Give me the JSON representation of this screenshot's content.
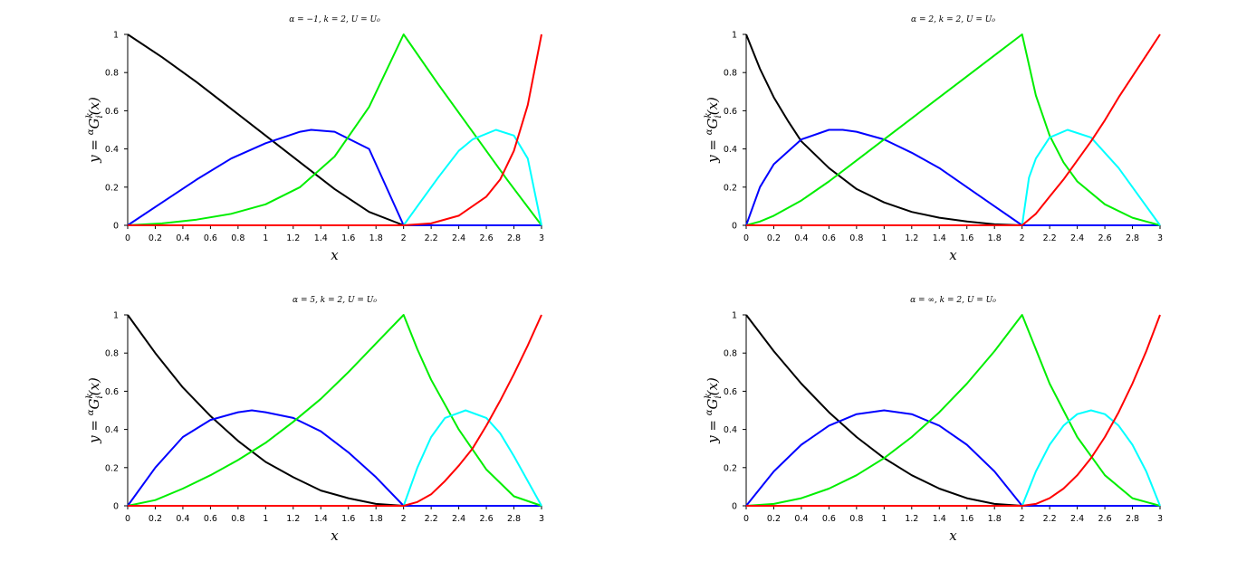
{
  "figure": {
    "ylabel_parts": [
      "y = ",
      "α",
      "G",
      "k",
      "i",
      "(x)"
    ]
  },
  "chart_data": [
    {
      "type": "line",
      "title": "α = −1, k = 2, U = U₀",
      "xlabel": "x",
      "ylabel": "y = αGᵢᵏ(x)",
      "xlim": [
        0,
        3
      ],
      "ylim": [
        0,
        1
      ],
      "xticks": [
        "0",
        "0.2",
        "0.4",
        "0.6",
        "0.8",
        "1",
        "1.2",
        "1.4",
        "1.6",
        "1.8",
        "2",
        "2.2",
        "2.4",
        "2.6",
        "2.8",
        "3"
      ],
      "yticks": [
        "0",
        "0.2",
        "0.4",
        "0.6",
        "0.8",
        "1"
      ],
      "grid": false,
      "series": [
        {
          "color": "#000000",
          "x": [
            0,
            0.25,
            0.5,
            0.75,
            1,
            1.25,
            1.5,
            1.75,
            2,
            2.5,
            3
          ],
          "y": [
            1,
            0.88,
            0.75,
            0.61,
            0.47,
            0.33,
            0.19,
            0.07,
            0,
            0,
            0
          ]
        },
        {
          "color": "#0000ff",
          "x": [
            0,
            0.25,
            0.5,
            0.75,
            1,
            1.25,
            1.33,
            1.5,
            1.75,
            2,
            2.5,
            3
          ],
          "y": [
            0,
            0.12,
            0.24,
            0.35,
            0.43,
            0.49,
            0.5,
            0.49,
            0.4,
            0,
            0,
            0
          ]
        },
        {
          "color": "#00ee00",
          "x": [
            0,
            0.25,
            0.5,
            0.75,
            1,
            1.25,
            1.5,
            1.75,
            2,
            2.25,
            2.5,
            2.75,
            3
          ],
          "y": [
            0,
            0.01,
            0.03,
            0.06,
            0.11,
            0.2,
            0.36,
            0.62,
            1,
            0.74,
            0.49,
            0.24,
            0
          ]
        },
        {
          "color": "#00ffff",
          "x": [
            0,
            1,
            2,
            2.1,
            2.25,
            2.4,
            2.5,
            2.67,
            2.8,
            2.9,
            3
          ],
          "y": [
            0,
            0,
            0,
            0.1,
            0.25,
            0.39,
            0.45,
            0.5,
            0.47,
            0.35,
            0
          ]
        },
        {
          "color": "#ff0000",
          "x": [
            0,
            1,
            2,
            2.2,
            2.4,
            2.6,
            2.7,
            2.8,
            2.9,
            3
          ],
          "y": [
            0,
            0,
            0,
            0.01,
            0.05,
            0.15,
            0.24,
            0.39,
            0.63,
            1
          ]
        }
      ]
    },
    {
      "type": "line",
      "title": "α = 2, k = 2, U = U₀",
      "xlabel": "x",
      "ylabel": "y = αGᵢᵏ(x)",
      "xlim": [
        0,
        3
      ],
      "ylim": [
        0,
        1
      ],
      "xticks": [
        "0",
        "0.2",
        "0.4",
        "0.6",
        "0.8",
        "1",
        "1.2",
        "1.4",
        "1.6",
        "1.8",
        "2",
        "2.2",
        "2.4",
        "2.6",
        "2.8",
        "3"
      ],
      "yticks": [
        "0",
        "0.2",
        "0.4",
        "0.6",
        "0.8",
        "1"
      ],
      "grid": false,
      "series": [
        {
          "color": "#000000",
          "x": [
            0,
            0.1,
            0.2,
            0.3,
            0.4,
            0.6,
            0.8,
            1,
            1.2,
            1.4,
            1.6,
            1.8,
            2,
            2.5,
            3
          ],
          "y": [
            1,
            0.82,
            0.67,
            0.55,
            0.44,
            0.3,
            0.19,
            0.12,
            0.07,
            0.04,
            0.02,
            0.005,
            0,
            0,
            0
          ]
        },
        {
          "color": "#0000ff",
          "x": [
            0,
            0.1,
            0.2,
            0.4,
            0.6,
            0.7,
            0.8,
            1,
            1.2,
            1.4,
            1.6,
            1.8,
            2,
            2.5,
            3
          ],
          "y": [
            0,
            0.2,
            0.32,
            0.45,
            0.5,
            0.5,
            0.49,
            0.45,
            0.38,
            0.3,
            0.2,
            0.1,
            0,
            0,
            0
          ]
        },
        {
          "color": "#00ee00",
          "x": [
            0,
            0.1,
            0.2,
            0.4,
            0.6,
            0.8,
            1,
            1.2,
            1.4,
            1.6,
            1.8,
            2,
            2.1,
            2.2,
            2.3,
            2.4,
            2.6,
            2.8,
            3
          ],
          "y": [
            0,
            0.02,
            0.05,
            0.13,
            0.23,
            0.34,
            0.45,
            0.56,
            0.67,
            0.78,
            0.89,
            1,
            0.68,
            0.47,
            0.33,
            0.23,
            0.11,
            0.04,
            0
          ]
        },
        {
          "color": "#00ffff",
          "x": [
            0,
            1,
            2,
            2.05,
            2.1,
            2.2,
            2.33,
            2.5,
            2.7,
            2.9,
            3
          ],
          "y": [
            0,
            0,
            0,
            0.25,
            0.35,
            0.46,
            0.5,
            0.46,
            0.3,
            0.1,
            0
          ]
        },
        {
          "color": "#ff0000",
          "x": [
            0,
            1,
            2,
            2.1,
            2.2,
            2.3,
            2.4,
            2.5,
            2.6,
            2.7,
            2.8,
            2.9,
            3
          ],
          "y": [
            0,
            0,
            0,
            0.06,
            0.15,
            0.24,
            0.34,
            0.44,
            0.55,
            0.67,
            0.78,
            0.89,
            1
          ]
        }
      ]
    },
    {
      "type": "line",
      "title": "α = 5, k = 2, U = U₀",
      "xlabel": "x",
      "ylabel": "y = αGᵢᵏ(x)",
      "xlim": [
        0,
        3
      ],
      "ylim": [
        0,
        1
      ],
      "xticks": [
        "0",
        "0.2",
        "0.4",
        "0.6",
        "0.8",
        "1",
        "1.2",
        "1.4",
        "1.6",
        "1.8",
        "2",
        "2.2",
        "2.4",
        "2.6",
        "2.8",
        "3"
      ],
      "yticks": [
        "0",
        "0.2",
        "0.4",
        "0.6",
        "0.8",
        "1"
      ],
      "grid": false,
      "series": [
        {
          "color": "#000000",
          "x": [
            0,
            0.2,
            0.4,
            0.6,
            0.8,
            1,
            1.2,
            1.4,
            1.6,
            1.8,
            2,
            2.5,
            3
          ],
          "y": [
            1,
            0.8,
            0.62,
            0.47,
            0.34,
            0.23,
            0.15,
            0.08,
            0.04,
            0.01,
            0,
            0,
            0
          ]
        },
        {
          "color": "#0000ff",
          "x": [
            0,
            0.2,
            0.4,
            0.6,
            0.8,
            0.9,
            1,
            1.2,
            1.4,
            1.6,
            1.8,
            2,
            2.5,
            3
          ],
          "y": [
            0,
            0.2,
            0.36,
            0.45,
            0.49,
            0.5,
            0.49,
            0.46,
            0.39,
            0.28,
            0.15,
            0,
            0,
            0
          ]
        },
        {
          "color": "#00ee00",
          "x": [
            0,
            0.2,
            0.4,
            0.6,
            0.8,
            1,
            1.2,
            1.4,
            1.6,
            1.8,
            2,
            2.1,
            2.2,
            2.4,
            2.6,
            2.8,
            3
          ],
          "y": [
            0,
            0.03,
            0.09,
            0.16,
            0.24,
            0.33,
            0.44,
            0.56,
            0.7,
            0.85,
            1,
            0.82,
            0.66,
            0.4,
            0.19,
            0.05,
            0
          ]
        },
        {
          "color": "#00ffff",
          "x": [
            0,
            1,
            2,
            2.1,
            2.2,
            2.3,
            2.45,
            2.6,
            2.7,
            2.8,
            2.9,
            3
          ],
          "y": [
            0,
            0,
            0,
            0.2,
            0.36,
            0.46,
            0.5,
            0.46,
            0.38,
            0.26,
            0.13,
            0
          ]
        },
        {
          "color": "#ff0000",
          "x": [
            0,
            1,
            2,
            2.1,
            2.2,
            2.3,
            2.4,
            2.5,
            2.6,
            2.7,
            2.8,
            2.9,
            3
          ],
          "y": [
            0,
            0,
            0,
            0.02,
            0.06,
            0.13,
            0.21,
            0.3,
            0.42,
            0.55,
            0.69,
            0.84,
            1
          ]
        }
      ]
    },
    {
      "type": "line",
      "title": "α = ∞, k = 2, U = U₀",
      "xlabel": "x",
      "ylabel": "y = αGᵢᵏ(x)",
      "xlim": [
        0,
        3
      ],
      "ylim": [
        0,
        1
      ],
      "xticks": [
        "0",
        "0.2",
        "0.4",
        "0.6",
        "0.8",
        "1",
        "1.2",
        "1.4",
        "1.6",
        "1.8",
        "2",
        "2.2",
        "2.4",
        "2.6",
        "2.8",
        "3"
      ],
      "yticks": [
        "0",
        "0.2",
        "0.4",
        "0.6",
        "0.8",
        "1"
      ],
      "grid": false,
      "series": [
        {
          "color": "#000000",
          "x": [
            0,
            0.2,
            0.4,
            0.6,
            0.8,
            1,
            1.2,
            1.4,
            1.6,
            1.8,
            2,
            2.5,
            3
          ],
          "y": [
            1,
            0.81,
            0.64,
            0.49,
            0.36,
            0.25,
            0.16,
            0.09,
            0.04,
            0.01,
            0,
            0,
            0
          ]
        },
        {
          "color": "#0000ff",
          "x": [
            0,
            0.2,
            0.4,
            0.6,
            0.8,
            1,
            1.2,
            1.4,
            1.6,
            1.8,
            2,
            2.5,
            3
          ],
          "y": [
            0,
            0.18,
            0.32,
            0.42,
            0.48,
            0.5,
            0.48,
            0.42,
            0.32,
            0.18,
            0,
            0,
            0
          ]
        },
        {
          "color": "#00ee00",
          "x": [
            0,
            0.2,
            0.4,
            0.6,
            0.8,
            1,
            1.2,
            1.4,
            1.6,
            1.8,
            2,
            2.2,
            2.4,
            2.6,
            2.8,
            3
          ],
          "y": [
            0,
            0.01,
            0.04,
            0.09,
            0.16,
            0.25,
            0.36,
            0.49,
            0.64,
            0.81,
            1,
            0.64,
            0.36,
            0.16,
            0.04,
            0
          ]
        },
        {
          "color": "#00ffff",
          "x": [
            0,
            1,
            2,
            2.1,
            2.2,
            2.3,
            2.4,
            2.5,
            2.6,
            2.7,
            2.8,
            2.9,
            3
          ],
          "y": [
            0,
            0,
            0,
            0.18,
            0.32,
            0.42,
            0.48,
            0.5,
            0.48,
            0.42,
            0.32,
            0.18,
            0
          ]
        },
        {
          "color": "#ff0000",
          "x": [
            0,
            1,
            2,
            2.1,
            2.2,
            2.3,
            2.4,
            2.5,
            2.6,
            2.7,
            2.8,
            2.9,
            3
          ],
          "y": [
            0,
            0,
            0,
            0.01,
            0.04,
            0.09,
            0.16,
            0.25,
            0.36,
            0.49,
            0.64,
            0.81,
            1
          ]
        }
      ]
    }
  ]
}
